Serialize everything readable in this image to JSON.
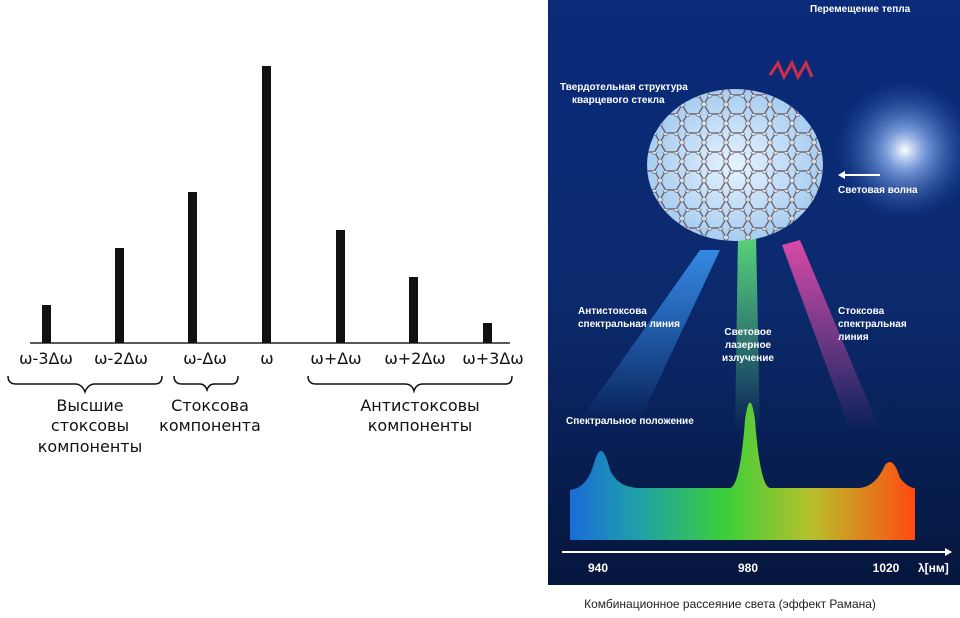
{
  "spectrum": {
    "labels": [
      "ω-3Δω",
      "ω-2Δω",
      "ω-Δω",
      "ω",
      "ω+Δω",
      "ω+2Δω",
      "ω+3Δω"
    ],
    "groups": [
      {
        "lines": [
          "Высшие",
          "стоксовы",
          "компоненты"
        ]
      },
      {
        "lines": [
          "Стоксова",
          "компонента"
        ]
      },
      {
        "lines": [
          "Антистоксовы",
          "компоненты"
        ]
      }
    ]
  },
  "illustration": {
    "heat": "Перемещение тепла",
    "structure": [
      "Твердотельная структура",
      "кварцевого стекла"
    ],
    "wave": "Световая волна",
    "anti_stokes": [
      "Антистоксова",
      "спектральная линия"
    ],
    "laser": [
      "Световое",
      "лазерное",
      "излучение"
    ],
    "stokes": [
      "Стоксова",
      "спектральная",
      "линия"
    ],
    "position": "Спектральное положение",
    "axis_ticks": [
      "940",
      "980",
      "1020"
    ],
    "axis_unit": "λ[нм]"
  },
  "caption": "Комбинационное рассеяние света (эффект Рамана)"
}
